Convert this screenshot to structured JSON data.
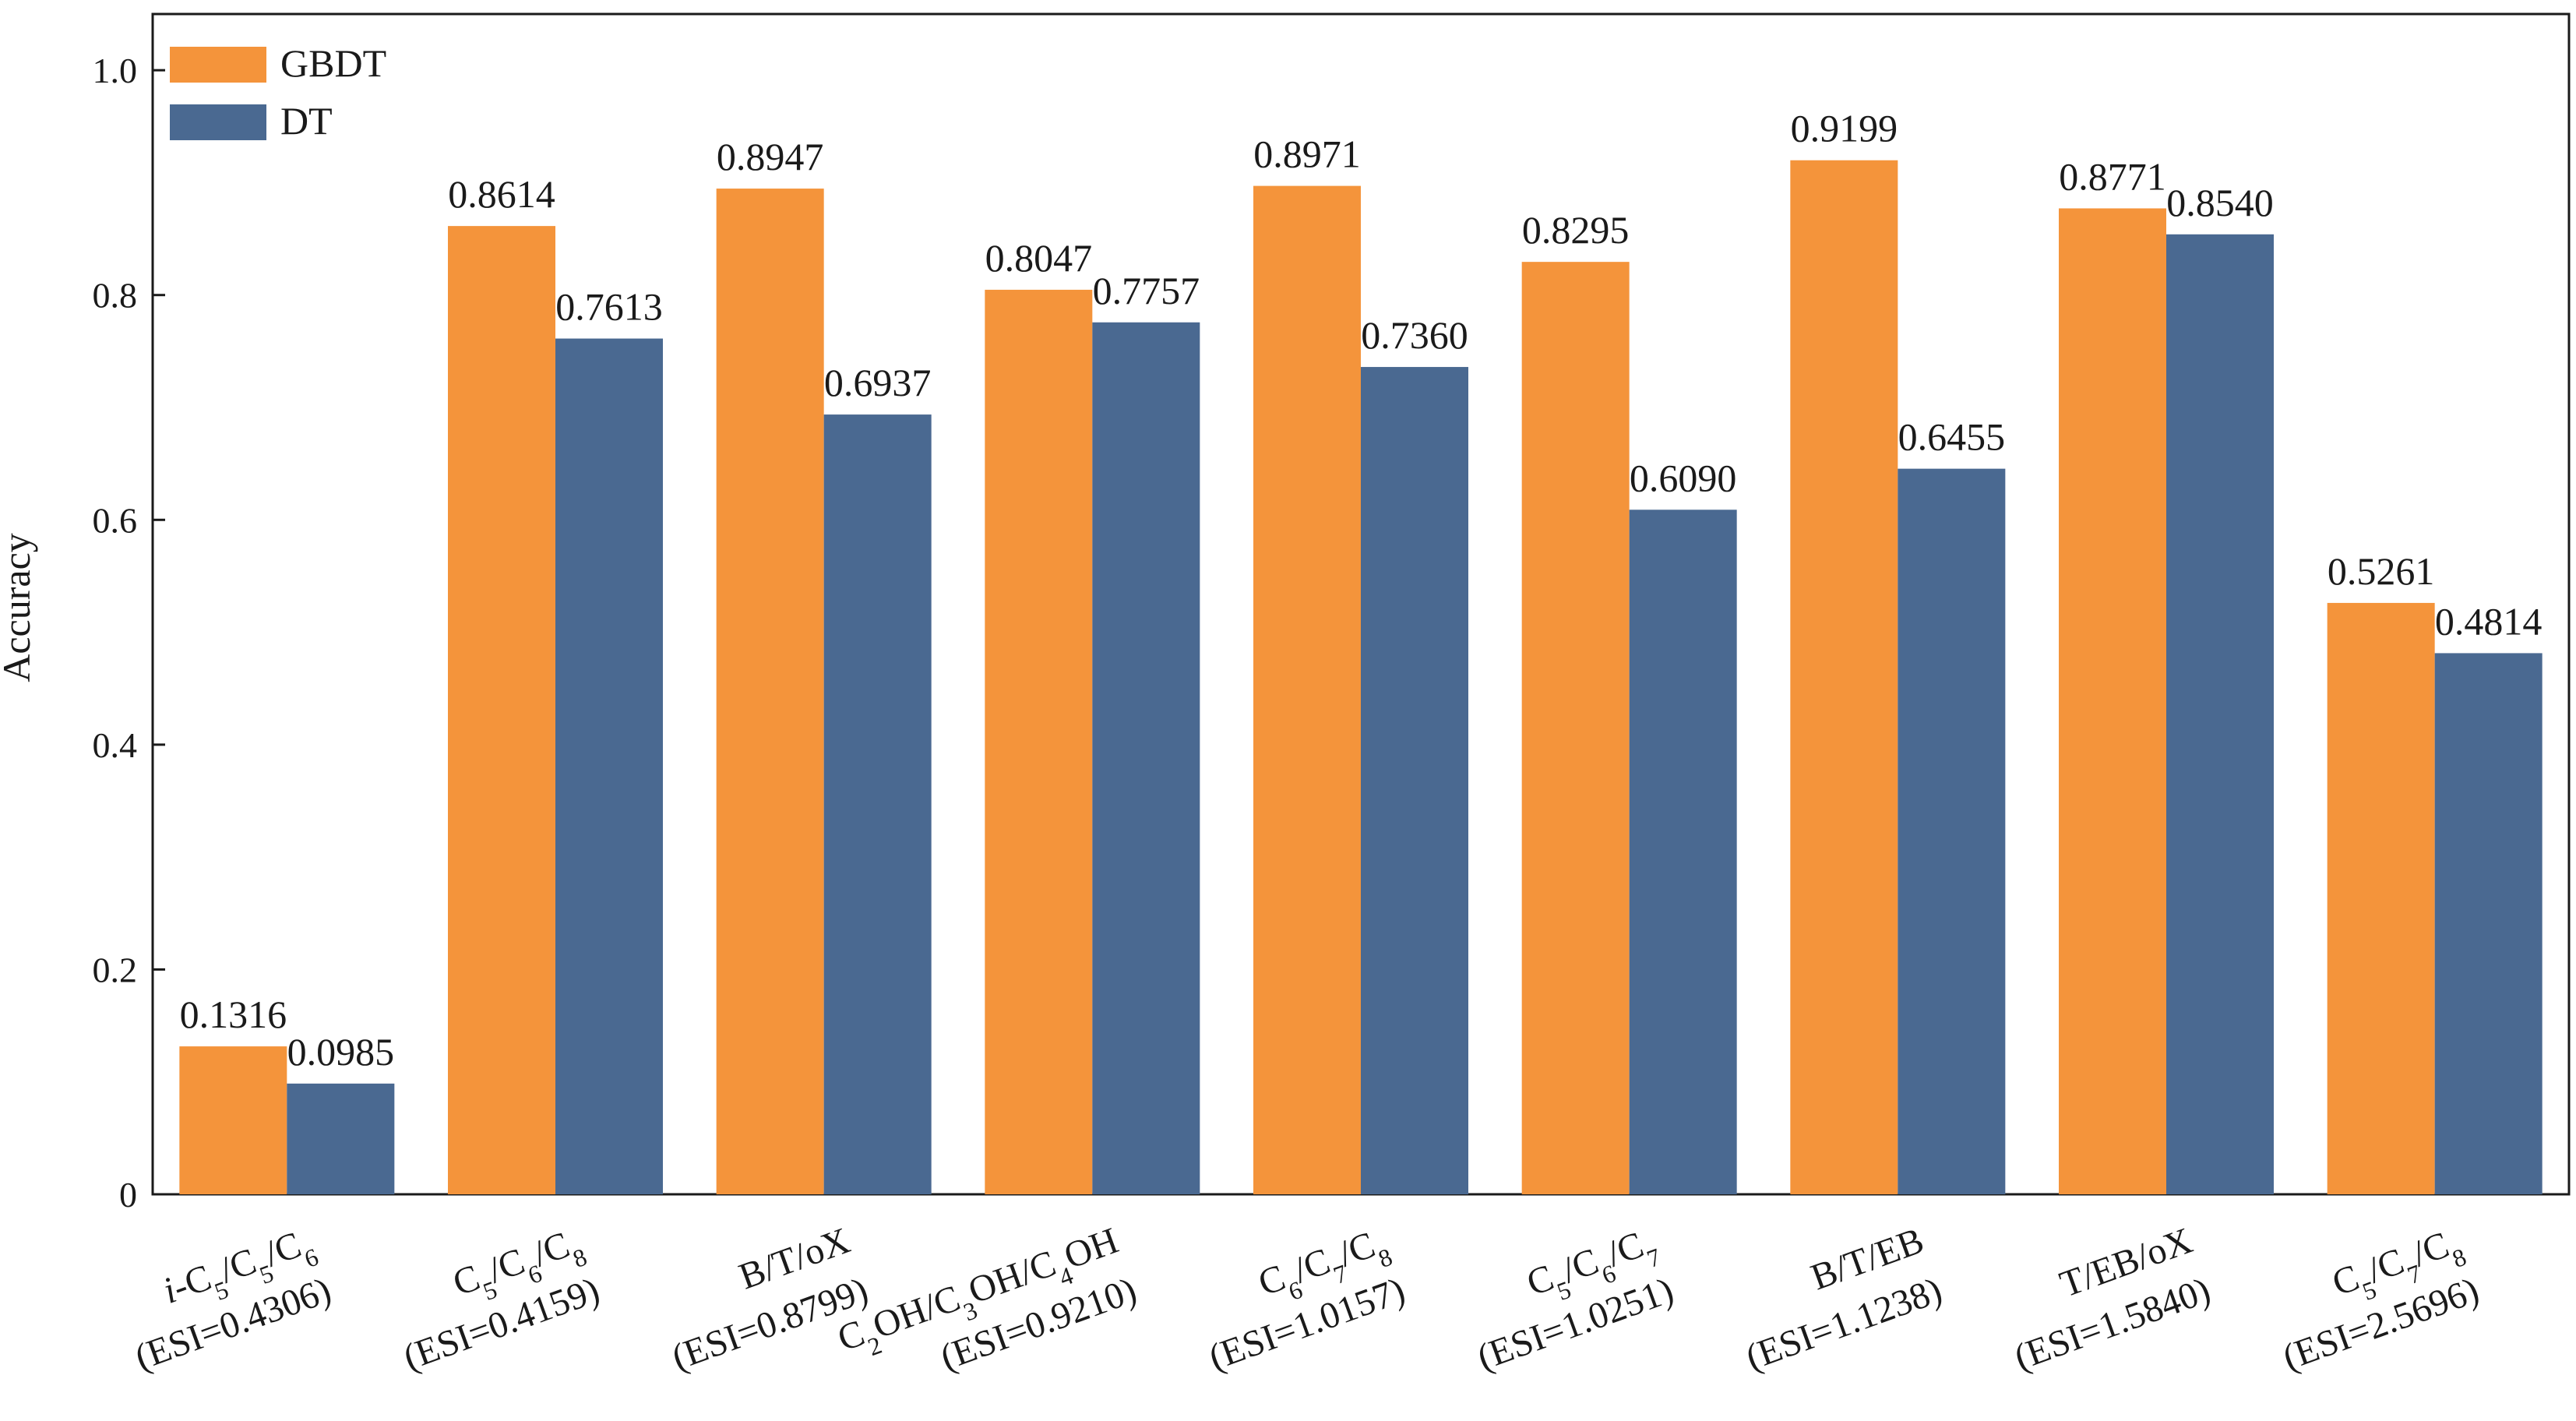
{
  "chart_data": {
    "type": "bar",
    "title": "",
    "xlabel": "",
    "ylabel": "Accuracy",
    "ylim": [
      0,
      1.05
    ],
    "yticks": [
      "0",
      "0.2",
      "0.4",
      "0.6",
      "0.8",
      "1.0"
    ],
    "yticks_values": [
      0,
      0.2,
      0.4,
      0.6,
      0.8,
      1.0
    ],
    "grid": false,
    "legend_position": "top-left",
    "categories": [
      {
        "id": "c1",
        "line1": [
          {
            "t": "i",
            "i": true
          },
          {
            "t": "-C"
          },
          {
            "t": "5",
            "sub": true
          },
          {
            "t": "/C"
          },
          {
            "t": "5",
            "sub": true
          },
          {
            "t": "/C"
          },
          {
            "t": "6",
            "sub": true
          }
        ],
        "line2": "(ESI=0.4306)"
      },
      {
        "id": "c2",
        "line1": [
          {
            "t": "C"
          },
          {
            "t": "5",
            "sub": true
          },
          {
            "t": "/C"
          },
          {
            "t": "6",
            "sub": true
          },
          {
            "t": "/C"
          },
          {
            "t": "8",
            "sub": true
          }
        ],
        "line2": "(ESI=0.4159)"
      },
      {
        "id": "c3",
        "line1": [
          {
            "t": "B/T/oX"
          }
        ],
        "line2": "(ESI=0.8799)"
      },
      {
        "id": "c4",
        "line1": [
          {
            "t": "C"
          },
          {
            "t": "2",
            "sub": true
          },
          {
            "t": "OH/C"
          },
          {
            "t": "3",
            "sub": true
          },
          {
            "t": "OH/C"
          },
          {
            "t": "4",
            "sub": true
          },
          {
            "t": "OH"
          }
        ],
        "line2": "(ESI=0.9210)"
      },
      {
        "id": "c5",
        "line1": [
          {
            "t": "C"
          },
          {
            "t": "6",
            "sub": true
          },
          {
            "t": "/C"
          },
          {
            "t": "7",
            "sub": true
          },
          {
            "t": "/C"
          },
          {
            "t": "8",
            "sub": true
          }
        ],
        "line2": "(ESI=1.0157)"
      },
      {
        "id": "c6",
        "line1": [
          {
            "t": "C"
          },
          {
            "t": "5",
            "sub": true
          },
          {
            "t": "/C"
          },
          {
            "t": "6",
            "sub": true
          },
          {
            "t": "/C"
          },
          {
            "t": "7",
            "sub": true
          }
        ],
        "line2": "(ESI=1.0251)"
      },
      {
        "id": "c7",
        "line1": [
          {
            "t": "B/T/EB"
          }
        ],
        "line2": "(ESI=1.1238)"
      },
      {
        "id": "c8",
        "line1": [
          {
            "t": "T/EB/oX"
          }
        ],
        "line2": "(ESI=1.5840)"
      },
      {
        "id": "c9",
        "line1": [
          {
            "t": "C"
          },
          {
            "t": "5",
            "sub": true
          },
          {
            "t": "/C"
          },
          {
            "t": "7",
            "sub": true
          },
          {
            "t": "/C"
          },
          {
            "t": "8",
            "sub": true
          }
        ],
        "line2": "(ESI=2.5696)"
      }
    ],
    "series": [
      {
        "name": "GBDT",
        "color": "#F4943B",
        "values": [
          0.1316,
          0.8614,
          0.8947,
          0.8047,
          0.8971,
          0.8295,
          0.9199,
          0.8771,
          0.5261
        ],
        "labels": [
          "0.1316",
          "0.8614",
          "0.8947",
          "0.8047",
          "0.8971",
          "0.8295",
          "0.9199",
          "0.8771",
          "0.5261"
        ]
      },
      {
        "name": "DT",
        "color": "#4A6991",
        "values": [
          0.0985,
          0.7613,
          0.6937,
          0.7757,
          0.736,
          0.609,
          0.6455,
          0.854,
          0.4814
        ],
        "labels": [
          "0.0985",
          "0.7613",
          "0.6937",
          "0.7757",
          "0.7360",
          "0.6090",
          "0.6455",
          "0.8540",
          "0.4814"
        ]
      }
    ]
  }
}
